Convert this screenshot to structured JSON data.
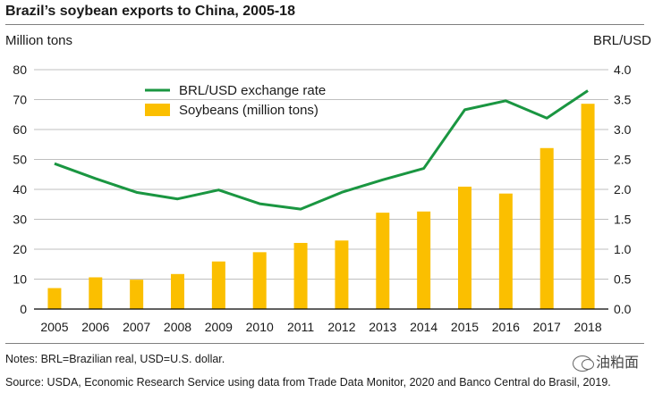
{
  "chart_data": {
    "type": "bar+line",
    "title": "Brazil’s soybean exports to China, 2005-18",
    "ylabel_left": "Million tons",
    "ylabel_right": "BRL/USD",
    "categories": [
      "2005",
      "2006",
      "2007",
      "2008",
      "2009",
      "2010",
      "2011",
      "2012",
      "2013",
      "2014",
      "2015",
      "2016",
      "2017",
      "2018"
    ],
    "left_ticks": [
      "0",
      "10",
      "20",
      "30",
      "40",
      "50",
      "60",
      "70",
      "80"
    ],
    "right_ticks": [
      "0.0",
      "0.5",
      "1.0",
      "1.5",
      "2.0",
      "2.5",
      "3.0",
      "3.5",
      "4.0"
    ],
    "ylim_left": [
      0,
      80
    ],
    "ylim_right": [
      0,
      4.0
    ],
    "legend_position": "top-left",
    "series": [
      {
        "name": "BRL/USD exchange rate",
        "type": "line",
        "axis": "right",
        "color": "#1a9641",
        "values": [
          2.43,
          2.18,
          1.95,
          1.84,
          1.99,
          1.76,
          1.67,
          1.95,
          2.16,
          2.35,
          3.33,
          3.48,
          3.19,
          3.65
        ]
      },
      {
        "name": "Soybeans (million tons)",
        "type": "bar",
        "axis": "left",
        "color": "#fbbf00",
        "values": [
          7.0,
          10.6,
          9.8,
          11.7,
          15.9,
          19.0,
          22.1,
          22.9,
          32.2,
          32.6,
          40.9,
          38.6,
          53.8,
          68.6
        ]
      }
    ],
    "gridlines": true
  },
  "notes": "Notes: BRL=Brazilian real, USD=U.S. dollar.",
  "source": "Source: USDA, Economic Research Service using data from Trade Data Monitor, 2020 and Banco Central do Brasil, 2019.",
  "watermark": "油粕面"
}
